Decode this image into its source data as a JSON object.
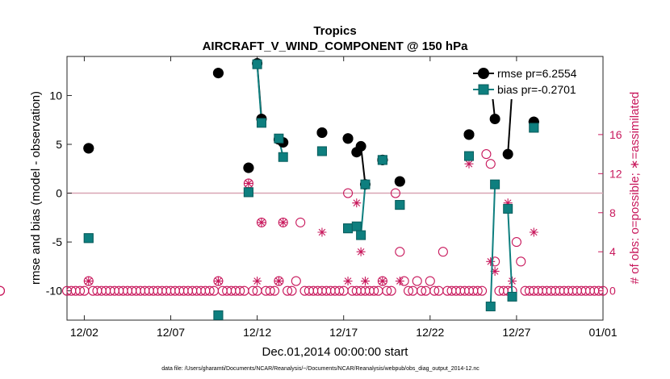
{
  "colors": {
    "rmse": "#000000",
    "bias": "#0e7f7f",
    "bias_edge": "#0a5e5e",
    "obs": "#c8185c",
    "zero_line": "#d8a4b4"
  },
  "footer": "data file: /Users/gharamti/Documents/NCAR/Reanalysis/~/Documents/NCAR/Reanalysis/webpub/obs_diag_output_2014-12.nc",
  "chart_data": {
    "type": "line",
    "title": "Tropics",
    "subtitle": "AIRCRAFT_V_WIND_COMPONENT @ 150 hPa",
    "xlabel": "Dec.01,2014 00:00:00 start",
    "ylabel": "rmse and bias (model - observation)",
    "y2label": "# of obs: o=possible; ∗=assimilated",
    "xlim": [
      0,
      31
    ],
    "ylim": [
      -13,
      14
    ],
    "y2lim": [
      -3,
      24
    ],
    "xticks": [
      1,
      6,
      11,
      16,
      21,
      26,
      31
    ],
    "xticklabels": [
      "12/02",
      "12/07",
      "12/12",
      "12/17",
      "12/22",
      "12/27",
      "01/01"
    ],
    "yticks": [
      -10,
      -5,
      0,
      5,
      10
    ],
    "y2ticks": [
      0,
      4,
      8,
      12,
      16
    ],
    "legend": [
      {
        "name": "rmse",
        "label": "rmse pr=6.2554"
      },
      {
        "name": "bias",
        "label": "bias pr=-0.2701"
      }
    ],
    "legend_position": "top-right",
    "series": [
      {
        "name": "rmse",
        "x": [
          1.25,
          1.25,
          null,
          8.75,
          8.75,
          null,
          10.5,
          10.5,
          null,
          11.0,
          11.25,
          null,
          12.25,
          12.5,
          null,
          14.75,
          14.75,
          null,
          16.25,
          16.25,
          null,
          16.75,
          17.0,
          17.25,
          null,
          18.25,
          18.25,
          null,
          19.25,
          19.25,
          null,
          23.25,
          23.25,
          null,
          24.5,
          24.75,
          null,
          25.5,
          25.75,
          null,
          27.0,
          27.0
        ],
        "values": [
          4.6,
          4.6,
          null,
          12.3,
          12.3,
          null,
          2.6,
          2.6,
          null,
          13.3,
          7.6,
          null,
          5.5,
          5.2,
          null,
          6.2,
          6.2,
          null,
          5.6,
          5.6,
          null,
          4.2,
          4.8,
          0.9,
          null,
          3.4,
          3.4,
          null,
          1.2,
          1.2,
          null,
          6.0,
          6.0,
          null,
          11.7,
          7.6,
          null,
          4.0,
          10.7,
          null,
          7.3,
          7.3
        ]
      },
      {
        "name": "bias",
        "x": [
          1.25,
          1.25,
          null,
          8.75,
          8.75,
          null,
          10.5,
          10.5,
          null,
          11.0,
          11.25,
          null,
          12.25,
          12.5,
          null,
          14.75,
          14.75,
          null,
          16.25,
          16.25,
          null,
          16.75,
          17.0,
          17.25,
          null,
          18.25,
          18.25,
          null,
          19.25,
          19.25,
          null,
          23.25,
          23.25,
          null,
          24.5,
          24.75,
          null,
          25.5,
          25.75,
          null,
          27.0,
          27.0
        ],
        "values": [
          -4.6,
          -4.6,
          null,
          -12.5,
          -12.5,
          null,
          0.1,
          0.1,
          null,
          13.2,
          7.2,
          null,
          5.6,
          3.7,
          null,
          4.3,
          4.3,
          null,
          -3.6,
          -3.6,
          null,
          -3.4,
          -4.3,
          0.9,
          null,
          3.4,
          3.4,
          null,
          -1.2,
          -1.2,
          null,
          3.8,
          3.8,
          null,
          -11.6,
          0.9,
          null,
          -1.6,
          -10.6,
          null,
          6.7,
          6.7
        ]
      }
    ],
    "possible_x": [
      0,
      0.25,
      0.5,
      0.75,
      1.0,
      1.25,
      1.5,
      1.75,
      2.0,
      2.25,
      2.5,
      2.75,
      3.0,
      3.25,
      3.5,
      3.75,
      4.0,
      4.25,
      4.5,
      4.75,
      5.0,
      5.25,
      5.5,
      5.75,
      6.0,
      6.25,
      6.5,
      6.75,
      7.0,
      7.25,
      7.5,
      7.75,
      8.0,
      8.25,
      8.5,
      8.75,
      9.0,
      9.25,
      9.5,
      9.75,
      10.0,
      10.25,
      10.5,
      10.75,
      11.0,
      11.25,
      11.5,
      11.75,
      12.0,
      12.25,
      12.5,
      12.75,
      13.0,
      13.25,
      13.5,
      13.75,
      14.0,
      14.25,
      14.5,
      14.75,
      15.0,
      15.25,
      15.5,
      15.75,
      16.0,
      16.25,
      16.5,
      16.75,
      17.0,
      17.25,
      17.5,
      17.75,
      18.0,
      18.25,
      18.5,
      18.75,
      19.0,
      19.25,
      19.5,
      19.75,
      20.0,
      20.25,
      20.5,
      20.75,
      21.0,
      21.25,
      21.5,
      21.75,
      22.0,
      22.25,
      22.5,
      22.75,
      23.0,
      23.25,
      23.5,
      23.75,
      24.0,
      24.25,
      24.5,
      24.75,
      25.0,
      25.25,
      25.5,
      25.75,
      26.0,
      26.25,
      26.5,
      26.75,
      27.0,
      27.25,
      27.5,
      27.75,
      28.0,
      28.25,
      28.5,
      28.75,
      29.0,
      29.25,
      29.5,
      29.75,
      30.0,
      30.25,
      30.5,
      30.75,
      31.0
    ],
    "possible": [
      0,
      0,
      0,
      0,
      0,
      1,
      0,
      0,
      0,
      0,
      0,
      0,
      0,
      0,
      0,
      0,
      0,
      0,
      0,
      0,
      0,
      0,
      0,
      0,
      0,
      0,
      0,
      0,
      0,
      0,
      0,
      0,
      0,
      0,
      0,
      1,
      0,
      0,
      0,
      0,
      0,
      0,
      11,
      0,
      0,
      7,
      0,
      0,
      0,
      1,
      7,
      0,
      0,
      1,
      7,
      0,
      0,
      0,
      0,
      0,
      0,
      0,
      0,
      0,
      0,
      10,
      0,
      0,
      0,
      0,
      0,
      0,
      0,
      1,
      0,
      0,
      10,
      4,
      1,
      0,
      0,
      1,
      0,
      0,
      1,
      0,
      0,
      4,
      0,
      0,
      0,
      0,
      0,
      0,
      0,
      0,
      0,
      14,
      13,
      3,
      0,
      0,
      0,
      0,
      5,
      3,
      0,
      0,
      0,
      0,
      0,
      0,
      0,
      0,
      0,
      0,
      0,
      0,
      0,
      0,
      0,
      0,
      0,
      0,
      0,
      0,
      0
    ],
    "assimilated_x": [
      1.25,
      8.75,
      10.5,
      11.0,
      11.25,
      12.25,
      12.5,
      14.75,
      16.25,
      16.75,
      17.0,
      17.25,
      18.25,
      19.25,
      23.25,
      24.5,
      24.75,
      25.5,
      25.75,
      27.0
    ],
    "assimilated": [
      1,
      1,
      11,
      1,
      7,
      1,
      7,
      6,
      1,
      9,
      4,
      1,
      1,
      1,
      13,
      3,
      2,
      9,
      1,
      6
    ]
  }
}
